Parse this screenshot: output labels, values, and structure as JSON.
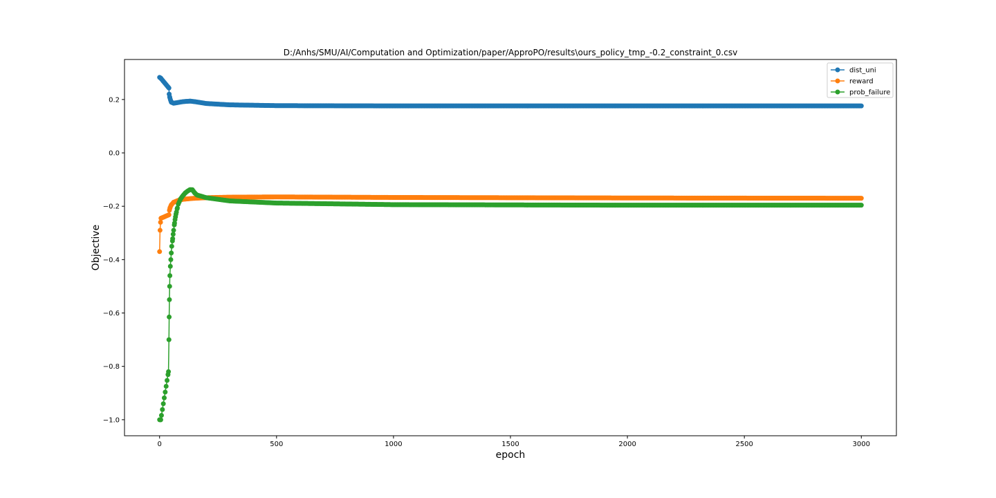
{
  "chart_data": {
    "type": "line",
    "title": "D:/Anhs/SMU/AI/Computation and Optimization/paper/ApproPO/results\\ours_policy_tmp_-0.2_constraint_0.csv",
    "xlabel": "epoch",
    "ylabel": "Objective",
    "xlim": [
      -150,
      3150
    ],
    "ylim": [
      -1.06,
      0.35
    ],
    "x_ticks": [
      0,
      500,
      1000,
      1500,
      2000,
      2500,
      3000
    ],
    "y_ticks": [
      -1.0,
      -0.8,
      -0.6,
      -0.4,
      -0.2,
      0.0,
      0.2
    ],
    "y_tick_labels": [
      "−1.0",
      "−0.8",
      "−0.6",
      "−0.4",
      "−0.2",
      "0.0",
      "0.2"
    ],
    "x_tick_labels": [
      "0",
      "500",
      "1000",
      "1500",
      "2000",
      "2500",
      "3000"
    ],
    "legend_position": "top-right",
    "grid": false,
    "series": [
      {
        "name": "dist_uni",
        "color": "#1f77b4",
        "points": [
          [
            0,
            0.283
          ],
          [
            5,
            0.28
          ],
          [
            40,
            0.243
          ],
          [
            41,
            0.22
          ],
          [
            43,
            0.21
          ],
          [
            46,
            0.2
          ],
          [
            50,
            0.19
          ],
          [
            60,
            0.186
          ],
          [
            80,
            0.189
          ],
          [
            100,
            0.192
          ],
          [
            130,
            0.194
          ],
          [
            150,
            0.192
          ],
          [
            200,
            0.185
          ],
          [
            300,
            0.18
          ],
          [
            500,
            0.177
          ],
          [
            1000,
            0.176
          ],
          [
            2000,
            0.176
          ],
          [
            3000,
            0.176
          ]
        ]
      },
      {
        "name": "reward",
        "color": "#ff7f0e",
        "points": [
          [
            0,
            -0.37
          ],
          [
            2,
            -0.29
          ],
          [
            4,
            -0.26
          ],
          [
            6,
            -0.245
          ],
          [
            40,
            -0.232
          ],
          [
            42,
            -0.215
          ],
          [
            45,
            -0.205
          ],
          [
            50,
            -0.195
          ],
          [
            60,
            -0.185
          ],
          [
            80,
            -0.178
          ],
          [
            100,
            -0.174
          ],
          [
            150,
            -0.17
          ],
          [
            200,
            -0.168
          ],
          [
            300,
            -0.166
          ],
          [
            500,
            -0.165
          ],
          [
            1000,
            -0.167
          ],
          [
            2000,
            -0.169
          ],
          [
            3000,
            -0.17
          ]
        ]
      },
      {
        "name": "prob_failure",
        "color": "#2ca02c",
        "points": [
          [
            0,
            -1.0
          ],
          [
            5,
            -1.0
          ],
          [
            38,
            -0.82
          ],
          [
            40,
            -0.7
          ],
          [
            41,
            -0.615
          ],
          [
            42,
            -0.55
          ],
          [
            43,
            -0.5
          ],
          [
            44,
            -0.46
          ],
          [
            46,
            -0.425
          ],
          [
            48,
            -0.4
          ],
          [
            50,
            -0.375
          ],
          [
            52,
            -0.35
          ],
          [
            55,
            -0.33
          ],
          [
            58,
            -0.305
          ],
          [
            60,
            -0.29
          ],
          [
            63,
            -0.27
          ],
          [
            66,
            -0.25
          ],
          [
            70,
            -0.23
          ],
          [
            75,
            -0.21
          ],
          [
            80,
            -0.192
          ],
          [
            90,
            -0.172
          ],
          [
            100,
            -0.16
          ],
          [
            110,
            -0.15
          ],
          [
            120,
            -0.143
          ],
          [
            130,
            -0.138
          ],
          [
            140,
            -0.138
          ],
          [
            150,
            -0.15
          ],
          [
            160,
            -0.158
          ],
          [
            200,
            -0.168
          ],
          [
            300,
            -0.18
          ],
          [
            500,
            -0.188
          ],
          [
            1000,
            -0.194
          ],
          [
            2000,
            -0.196
          ],
          [
            3000,
            -0.196
          ]
        ]
      }
    ]
  }
}
